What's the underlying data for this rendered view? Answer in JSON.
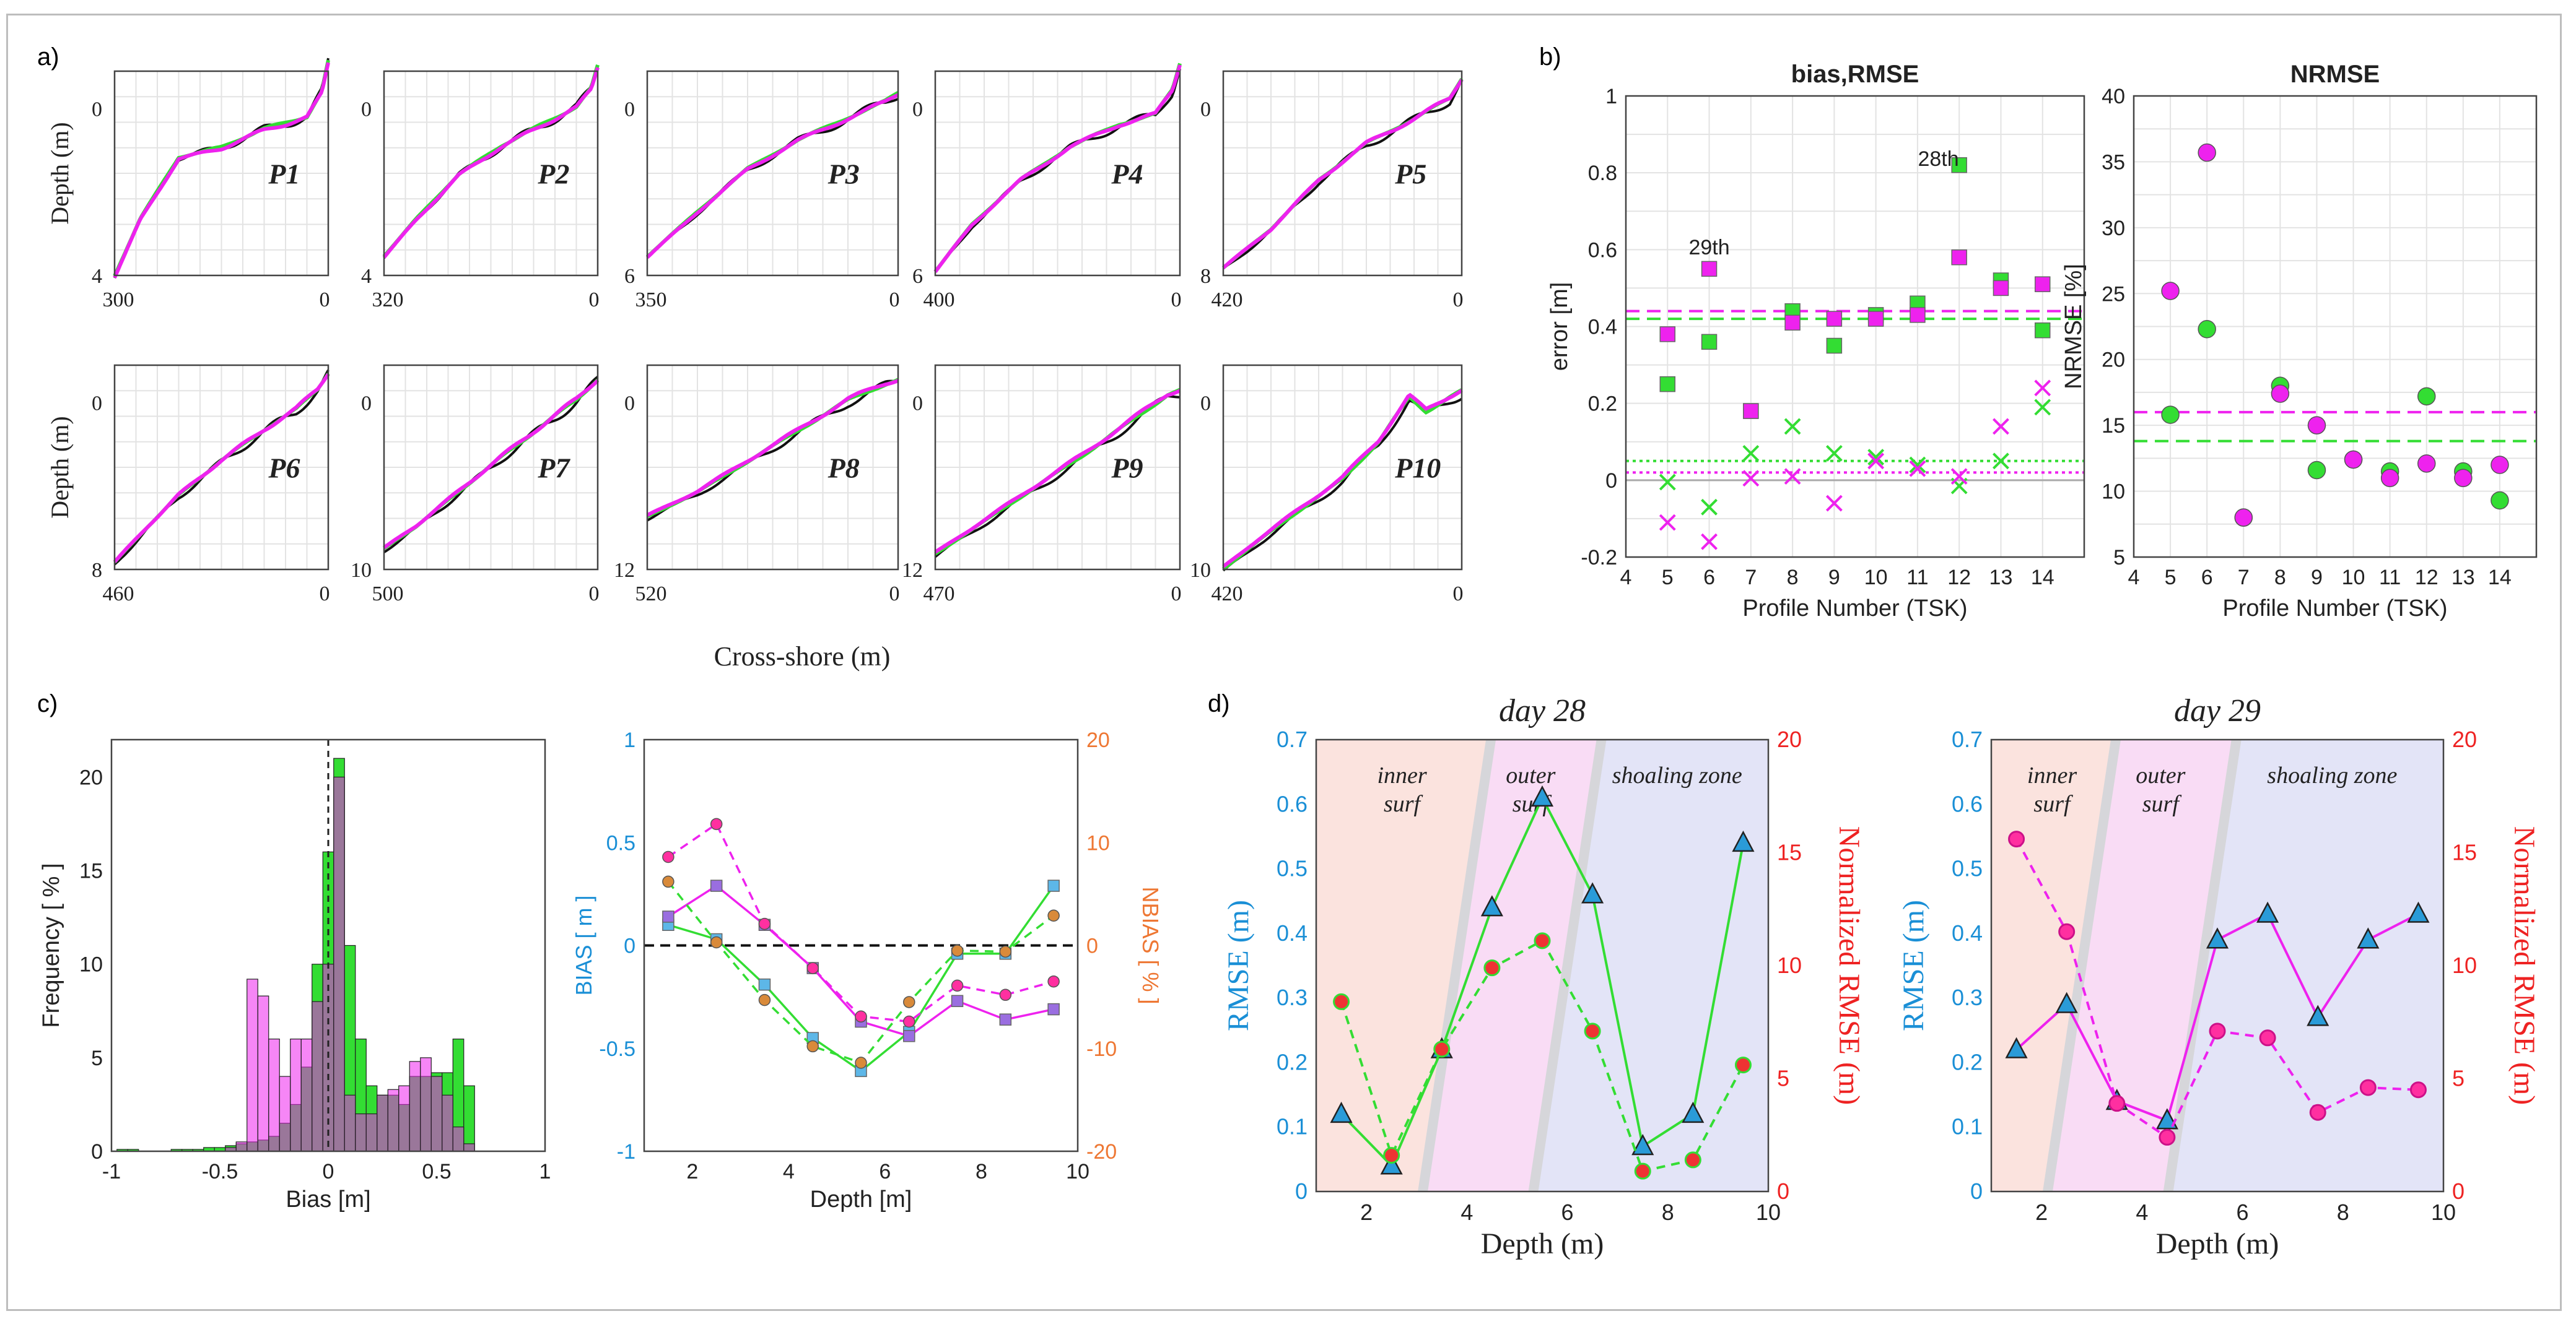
{
  "colors": {
    "green": "#33dd33",
    "magenta": "#ee22ee",
    "black": "#111111",
    "orange": "#ee7733",
    "blue": "#1a8fd6",
    "red": "#ee2222"
  },
  "panel_labels": {
    "a": "a)",
    "b": "b)",
    "c": "c)",
    "d": "d)"
  },
  "chart_data": [
    {
      "id": "a-profiles",
      "type": "line",
      "ylabel": "Depth (m)",
      "xlabel": "Cross-shore (m)",
      "profiles": [
        {
          "name": "P1",
          "xmax": 300,
          "xmax_label": "300",
          "zmin": 0,
          "zmax": 4,
          "ytick_labels": [
            "0",
            "4"
          ]
        },
        {
          "name": "P2",
          "xmax": 320,
          "xmax_label": "320",
          "zmin": 0,
          "zmax": 4,
          "ytick_labels": [
            "0",
            "4"
          ]
        },
        {
          "name": "P3",
          "xmax": 350,
          "xmax_label": "350",
          "zmin": 0,
          "zmax": 6,
          "ytick_labels": [
            "0",
            "6"
          ]
        },
        {
          "name": "P4",
          "xmax": 400,
          "xmax_label": "400",
          "zmin": 0,
          "zmax": 6,
          "ytick_labels": [
            "0",
            "6"
          ]
        },
        {
          "name": "P5",
          "xmax": 420,
          "xmax_label": "420",
          "zmin": 0,
          "zmax": 8,
          "ytick_labels": [
            "0",
            "8"
          ]
        },
        {
          "name": "P6",
          "xmax": 460,
          "xmax_label": "460",
          "zmin": 0,
          "zmax": 8,
          "ytick_labels": [
            "0",
            "8"
          ]
        },
        {
          "name": "P7",
          "xmax": 500,
          "xmax_label": "500",
          "zmin": 0,
          "zmax": 10,
          "ytick_labels": [
            "0",
            "10"
          ]
        },
        {
          "name": "P8",
          "xmax": 520,
          "xmax_label": "520",
          "zmin": 0,
          "zmax": 12,
          "ytick_labels": [
            "0",
            "12"
          ]
        },
        {
          "name": "P9",
          "xmax": 470,
          "xmax_label": "470",
          "zmin": 0,
          "zmax": 12,
          "ytick_labels": [
            "0",
            "12"
          ]
        },
        {
          "name": "P10",
          "xmax": 420,
          "xmax_label": "420",
          "zmin": 0,
          "zmax": 10,
          "ytick_labels": [
            "0",
            "10"
          ]
        }
      ],
      "x_zero_label": "0"
    },
    {
      "id": "b-bias-rmse",
      "type": "scatter",
      "title": "bias,RMSE",
      "xlabel": "Profile Number (TSK)",
      "ylabel": "error [m]",
      "xlim": [
        4,
        15
      ],
      "ylim": [
        -0.2,
        1
      ],
      "xticks": [
        "4",
        "5",
        "6",
        "7",
        "8",
        "9",
        "10",
        "11",
        "12",
        "13",
        "14"
      ],
      "yticks": [
        "-0.2",
        "0",
        "0.2",
        "0.4",
        "0.6",
        "0.8",
        "1"
      ],
      "x": [
        5,
        6,
        7,
        8,
        9,
        10,
        11,
        12,
        13,
        14
      ],
      "series": [
        {
          "name": "RMSE green",
          "marker": "square",
          "color": "green",
          "values": [
            0.25,
            0.36,
            0.18,
            0.44,
            0.35,
            0.43,
            0.46,
            0.82,
            0.52,
            0.39
          ]
        },
        {
          "name": "RMSE magenta",
          "marker": "square",
          "color": "magenta",
          "values": [
            0.38,
            0.55,
            0.18,
            0.41,
            0.42,
            0.42,
            0.43,
            0.58,
            0.5,
            0.51
          ]
        },
        {
          "name": "bias green",
          "marker": "x",
          "color": "green",
          "values": [
            -0.005,
            -0.07,
            0.07,
            0.14,
            0.07,
            0.06,
            0.04,
            -0.015,
            0.05,
            0.19
          ]
        },
        {
          "name": "bias magenta",
          "marker": "x",
          "color": "magenta",
          "values": [
            -0.11,
            -0.16,
            0.005,
            0.01,
            -0.06,
            0.05,
            0.03,
            0.01,
            0.14,
            0.24
          ]
        }
      ],
      "mean_lines": [
        {
          "color": "magenta",
          "style": "dashed",
          "value": 0.44
        },
        {
          "color": "green",
          "style": "dashed",
          "value": 0.42
        },
        {
          "color": "green",
          "style": "dotted",
          "value": 0.05
        },
        {
          "color": "magenta",
          "style": "dotted",
          "value": 0.02
        }
      ],
      "annotations": [
        {
          "text": "29th",
          "x": 6,
          "y": 0.62
        },
        {
          "text": "28th",
          "x": 11.5,
          "y": 0.85
        }
      ]
    },
    {
      "id": "b-nrmse",
      "type": "scatter",
      "title": "NRMSE",
      "xlabel": "Profile Number (TSK)",
      "ylabel": "NRMSE [%]",
      "xlim": [
        4,
        15
      ],
      "ylim": [
        5,
        40
      ],
      "xticks": [
        "4",
        "5",
        "6",
        "7",
        "8",
        "9",
        "10",
        "11",
        "12",
        "13",
        "14"
      ],
      "yticks": [
        "5",
        "10",
        "15",
        "20",
        "25",
        "30",
        "35",
        "40"
      ],
      "x": [
        5,
        6,
        7,
        8,
        9,
        10,
        11,
        12,
        13,
        14
      ],
      "series": [
        {
          "name": "green",
          "marker": "circle",
          "color": "green",
          "values": [
            15.8,
            22.3,
            8.0,
            18.0,
            11.6,
            12.4,
            11.5,
            17.2,
            11.5,
            9.3
          ]
        },
        {
          "name": "magenta",
          "marker": "circle",
          "color": "magenta",
          "values": [
            25.2,
            35.7,
            8.0,
            17.4,
            15.0,
            12.4,
            11.0,
            12.1,
            11.0,
            12.0
          ]
        }
      ],
      "mean_lines": [
        {
          "color": "magenta",
          "style": "dashed",
          "value": 16.0
        },
        {
          "color": "green",
          "style": "dashed",
          "value": 13.8
        }
      ]
    },
    {
      "id": "c-histogram",
      "type": "bar",
      "xlabel": "Bias [m]",
      "ylabel": "Frequency [ % ]",
      "xlim": [
        -1,
        1
      ],
      "ylim": [
        0,
        22
      ],
      "xticks": [
        "-1",
        "-0.5",
        "0",
        "0.5",
        "1"
      ],
      "yticks": [
        "0",
        "5",
        "10",
        "15",
        "20"
      ],
      "bin_centers": [
        -0.95,
        -0.9,
        -0.85,
        -0.8,
        -0.75,
        -0.7,
        -0.65,
        -0.6,
        -0.55,
        -0.5,
        -0.45,
        -0.4,
        -0.35,
        -0.3,
        -0.25,
        -0.2,
        -0.15,
        -0.1,
        -0.05,
        0,
        0.05,
        0.1,
        0.15,
        0.2,
        0.25,
        0.3,
        0.35,
        0.4,
        0.45,
        0.5,
        0.55,
        0.6,
        0.65
      ],
      "series": [
        {
          "name": "green",
          "color": "green",
          "values": [
            0.1,
            0.1,
            0,
            0,
            0,
            0.1,
            0.1,
            0.1,
            0.2,
            0.2,
            0.3,
            0.4,
            0.5,
            0.6,
            0.8,
            1.5,
            2.5,
            4.5,
            10,
            16,
            21,
            11,
            6,
            3.5,
            3,
            3,
            2.5,
            4,
            4,
            4.2,
            4.2,
            6,
            3.5
          ]
        },
        {
          "name": "magenta",
          "color": "magenta",
          "values": [
            0,
            0,
            0,
            0,
            0,
            0,
            0,
            0,
            0,
            0,
            0.2,
            0.5,
            9.2,
            8.3,
            6,
            4,
            6,
            6,
            8,
            10,
            20,
            3,
            2,
            2,
            3,
            3.3,
            3.5,
            4.8,
            5,
            4,
            3,
            1.3,
            0.4
          ]
        }
      ],
      "vline": {
        "value": 0,
        "style": "dashed"
      }
    },
    {
      "id": "c-depth-bias",
      "type": "line",
      "xlabel": "Depth [m]",
      "ylabel_left": "BIAS [ m ]",
      "ylabel_right": "NBIAS [ % ]",
      "xlim": [
        1,
        10
      ],
      "ylim_left": [
        -1,
        1
      ],
      "ylim_right": [
        -20,
        20
      ],
      "xticks": [
        "2",
        "4",
        "6",
        "8",
        "10"
      ],
      "yticks_left": [
        "-1",
        "-0.5",
        "0",
        "0.5",
        "1"
      ],
      "yticks_right": [
        "-20",
        "-10",
        "0",
        "10",
        "20"
      ],
      "x": [
        1.5,
        2.5,
        3.5,
        4.5,
        5.5,
        6.5,
        7.5,
        8.5,
        9.5
      ],
      "series": [
        {
          "name": "bias green",
          "axis": "left",
          "marker": "square",
          "color": "green",
          "style": "solid",
          "values": [
            0.1,
            0.03,
            -0.19,
            -0.45,
            -0.61,
            -0.42,
            -0.04,
            -0.04,
            0.29
          ]
        },
        {
          "name": "bias magenta",
          "axis": "left",
          "marker": "square",
          "color": "magenta",
          "style": "solid",
          "values": [
            0.14,
            0.29,
            0.1,
            -0.11,
            -0.37,
            -0.44,
            -0.27,
            -0.36,
            -0.31
          ]
        },
        {
          "name": "nbias green",
          "axis": "right",
          "marker": "circle",
          "color": "green",
          "style": "dashed",
          "values": [
            6.2,
            0.3,
            -5.3,
            -9.8,
            -11.4,
            -5.5,
            -0.5,
            -0.6,
            2.9
          ]
        },
        {
          "name": "nbias magenta",
          "axis": "right",
          "marker": "circle",
          "color": "magenta",
          "style": "dashed",
          "values": [
            8.6,
            11.8,
            2.1,
            -2.2,
            -6.9,
            -7.4,
            -3.9,
            -4.8,
            -3.5
          ]
        }
      ],
      "zero_line": {
        "value": 0,
        "style": "dashed"
      }
    },
    {
      "id": "d-day28",
      "type": "line",
      "title": "day 28",
      "xlabel": "Depth (m)",
      "ylabel_left": "RMSE (m)",
      "ylabel_right": "Normalized RMSE (m)",
      "xlim": [
        1,
        10
      ],
      "ylim_left": [
        0,
        0.7
      ],
      "ylim_right": [
        0,
        20
      ],
      "xticks": [
        "2",
        "4",
        "6",
        "8",
        "10"
      ],
      "yticks_left": [
        "0",
        "0.1",
        "0.2",
        "0.3",
        "0.4",
        "0.5",
        "0.6",
        "0.7"
      ],
      "yticks_right": [
        "0",
        "5",
        "10",
        "15",
        "20"
      ],
      "zones": [
        {
          "label_lines": [
            "inner",
            "surf"
          ],
          "from": 1,
          "to": 3.8,
          "color": "#fbe3de"
        },
        {
          "label_lines": [
            "outer",
            "surf"
          ],
          "from": 3.8,
          "to": 6.0,
          "color": "#f9dcf5"
        },
        {
          "label_lines": [
            "shoaling zone"
          ],
          "from": 6.0,
          "to": 10,
          "color": "#e3e4f7"
        }
      ],
      "x": [
        1.5,
        2.5,
        3.5,
        4.5,
        5.5,
        6.5,
        7.5,
        8.5,
        9.5
      ],
      "series": [
        {
          "name": "RMSE",
          "axis": "left",
          "marker": "triangle",
          "color": "green",
          "style": "solid",
          "values": [
            0.12,
            0.04,
            0.22,
            0.44,
            0.61,
            0.46,
            0.07,
            0.12,
            0.54
          ]
        },
        {
          "name": "NRMSE",
          "axis": "right",
          "marker": "circle",
          "color": "green",
          "style": "dashed",
          "values": [
            8.4,
            1.6,
            6.3,
            9.9,
            11.1,
            7.1,
            0.9,
            1.4,
            5.6
          ]
        }
      ]
    },
    {
      "id": "d-day29",
      "type": "line",
      "title": "day 29",
      "xlabel": "Depth (m)",
      "ylabel_left": "RMSE (m)",
      "ylabel_right": "Normalized RMSE (m)",
      "xlim": [
        1,
        10
      ],
      "ylim_left": [
        0,
        0.7
      ],
      "ylim_right": [
        0,
        20
      ],
      "xticks": [
        "2",
        "4",
        "6",
        "8",
        "10"
      ],
      "yticks_left": [
        "0",
        "0.1",
        "0.2",
        "0.3",
        "0.4",
        "0.5",
        "0.6",
        "0.7"
      ],
      "yticks_right": [
        "0",
        "5",
        "10",
        "15",
        "20"
      ],
      "zones": [
        {
          "label_lines": [
            "inner",
            "surf"
          ],
          "from": 1,
          "to": 2.8,
          "color": "#fbe3de"
        },
        {
          "label_lines": [
            "outer",
            "surf"
          ],
          "from": 2.8,
          "to": 5.2,
          "color": "#f9dcf5"
        },
        {
          "label_lines": [
            "shoaling zone"
          ],
          "from": 5.2,
          "to": 10,
          "color": "#e3e4f7"
        }
      ],
      "x": [
        1.5,
        2.5,
        3.5,
        4.5,
        5.5,
        6.5,
        7.5,
        8.5,
        9.5
      ],
      "series": [
        {
          "name": "RMSE",
          "axis": "left",
          "marker": "triangle",
          "color": "magenta",
          "style": "solid",
          "values": [
            0.22,
            0.29,
            0.14,
            0.11,
            0.39,
            0.43,
            0.27,
            0.39,
            0.43
          ]
        },
        {
          "name": "NRMSE",
          "axis": "right",
          "marker": "circle",
          "color": "magenta",
          "style": "dashed",
          "values": [
            15.6,
            11.5,
            3.9,
            2.4,
            7.1,
            6.8,
            3.5,
            4.6,
            4.5
          ]
        }
      ]
    }
  ]
}
